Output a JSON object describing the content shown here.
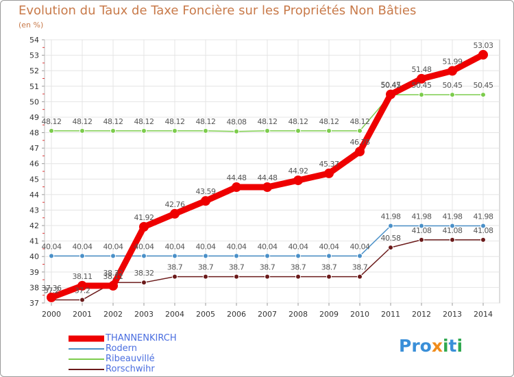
{
  "chart_data": {
    "type": "line",
    "title": "Evolution du Taux de Taxe Foncière sur les Propriétés Non Bâties",
    "ylabel": "(en %)",
    "xlabel": "",
    "ylim": [
      37,
      54
    ],
    "yticks": [
      37,
      38,
      39,
      40,
      41,
      42,
      43,
      44,
      45,
      46,
      47,
      48,
      49,
      50,
      51,
      52,
      53,
      54
    ],
    "categories": [
      "2000",
      "2001",
      "2002",
      "2003",
      "2004",
      "2005",
      "2006",
      "2007",
      "2008",
      "2009",
      "2010",
      "2011",
      "2012",
      "2013",
      "2014"
    ],
    "series": [
      {
        "name": "THANNENKIRCH",
        "color": "#ee0000",
        "values": [
          37.36,
          38.11,
          38.11,
          41.92,
          42.76,
          43.59,
          44.48,
          44.48,
          44.92,
          45.37,
          46.78,
          50.47,
          51.48,
          51.99,
          53.03
        ],
        "labels": [
          "37.36",
          "38.11",
          "38.11",
          "41.92",
          "42.76",
          "43.59",
          "44.48",
          "44.48",
          "44.92",
          "45.37",
          "46.78",
          "50.47",
          "51.48",
          "51.99",
          "53.03"
        ]
      },
      {
        "name": "Rodern",
        "color": "#4a90c8",
        "values": [
          40.04,
          40.04,
          40.04,
          40.04,
          40.04,
          40.04,
          40.04,
          40.04,
          40.04,
          40.04,
          40.04,
          41.98,
          41.98,
          41.98,
          41.98
        ],
        "labels": [
          "40.04",
          "40.04",
          "40.04",
          "40.04",
          "40.04",
          "40.04",
          "40.04",
          "40.04",
          "40.04",
          "40.04",
          "40.04",
          "41.98",
          "41.98",
          "41.98",
          "41.98"
        ]
      },
      {
        "name": "Ribeauvillé",
        "color": "#7ccc4c",
        "values": [
          48.12,
          48.12,
          48.12,
          48.12,
          48.12,
          48.12,
          48.08,
          48.12,
          48.12,
          48.12,
          48.12,
          50.45,
          50.45,
          50.45,
          50.45
        ],
        "labels": [
          "48.12",
          "48.12",
          "48.12",
          "48.12",
          "48.12",
          "48.12",
          "48.08",
          "48.12",
          "48.12",
          "48.12",
          "48.12",
          "50.45",
          "50.45",
          "50.45",
          "50.45"
        ]
      },
      {
        "name": "Rorschwihr",
        "color": "#6b1a1a",
        "values": [
          37.2,
          37.2,
          38.32,
          38.32,
          38.7,
          38.7,
          38.7,
          38.7,
          38.7,
          38.7,
          38.7,
          40.58,
          41.08,
          41.08,
          41.08
        ],
        "labels": [
          "37.2",
          "37.2",
          "38.32",
          "38.32",
          "38.7",
          "38.7",
          "38.7",
          "38.7",
          "38.7",
          "38.7",
          "38.7",
          "40.58",
          "41.08",
          "41.08",
          "41.08"
        ]
      }
    ],
    "legend_position": "bottom-left"
  },
  "logo": {
    "parts": [
      "Pro",
      "x",
      "i",
      "t",
      "i"
    ],
    "colors": [
      "#3a8fd8",
      "#f08c1c",
      "#2fa84f",
      "#3a8fd8",
      "#2fa84f"
    ]
  }
}
